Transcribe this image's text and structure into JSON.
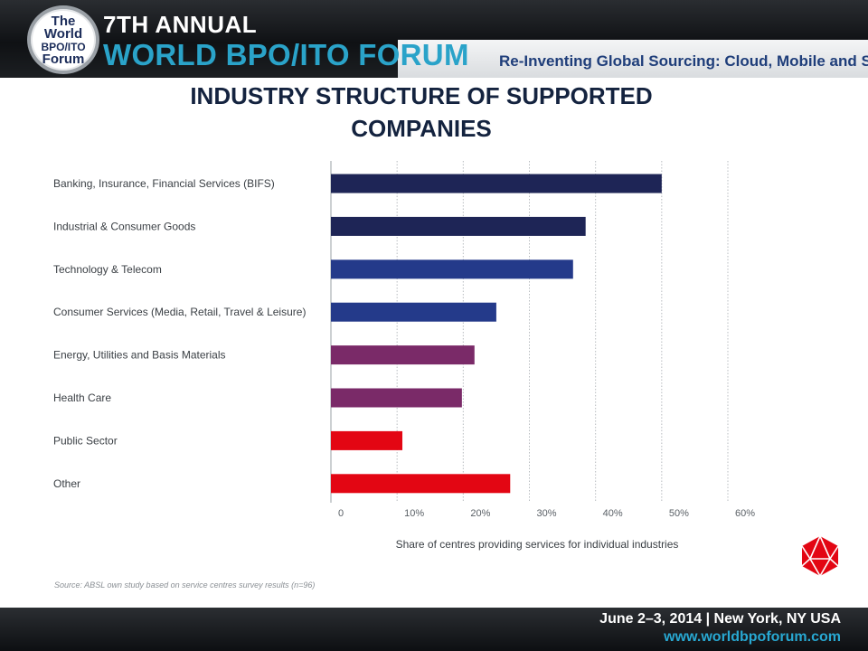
{
  "header": {
    "logo_lines": [
      "The",
      "World",
      "BPO/ITO",
      "Forum"
    ],
    "annual": "7TH ANNUAL",
    "forum_name": "WORLD BPO/ITO FORUM",
    "tagline": "Re-Inventing Global Sourcing: Cloud, Mobile and Social"
  },
  "title_lines": [
    "INDUSTRY STRUCTURE OF SUPPORTED",
    "COMPANIES"
  ],
  "chart_data": {
    "type": "bar",
    "orientation": "horizontal",
    "categories": [
      "Banking, Insurance, Financial Services (BIFS)",
      "Industrial & Consumer Goods",
      "Technology & Telecom",
      "Consumer Services (Media, Retail, Travel & Leisure)",
      "Energy, Utilities and Basis Materials",
      "Health Care",
      "Public Sector",
      "Other"
    ],
    "values": [
      50,
      38.5,
      36.6,
      25,
      21.7,
      19.8,
      10.8,
      27.1
    ],
    "bar_colors": [
      "#1e2556",
      "#1e2556",
      "#243a8a",
      "#243a8a",
      "#7a2a68",
      "#7a2a68",
      "#e30613",
      "#e30613"
    ],
    "xlim": [
      0,
      60
    ],
    "xticks": [
      0,
      10,
      20,
      30,
      40,
      50,
      60
    ],
    "xtick_labels": [
      "0",
      "10%",
      "20%",
      "30%",
      "40%",
      "50%",
      "60%"
    ],
    "xlabel": "Share of centres providing services for individual industries",
    "grid": "vertical dotted",
    "legend": "none"
  },
  "source": "Source: ABSL own study based on service centres survey results (n=96)",
  "colors": {
    "title": "#14233f",
    "forum_blue": "#2aa3c9",
    "tagline": "#1f3e7a",
    "brand_red": "#e30613"
  },
  "footer": {
    "dates": "June 2–3, 2014 | New York, NY USA",
    "url": "www.worldbpoforum.com"
  }
}
